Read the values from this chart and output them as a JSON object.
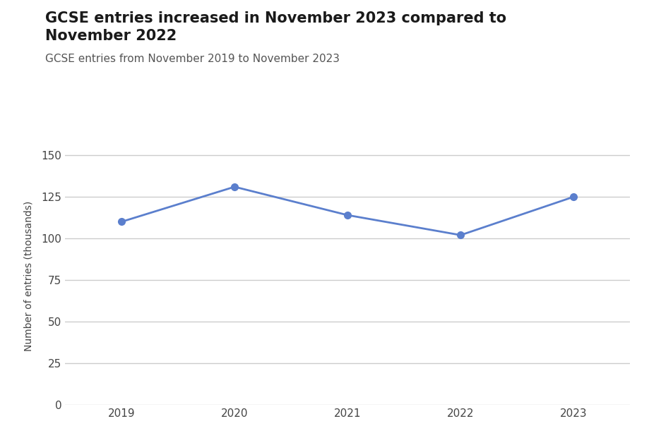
{
  "title_line1": "GCSE entries increased in November 2023 compared to",
  "title_line2": "November 2022",
  "subtitle": "GCSE entries from November 2019 to November 2023",
  "x_values": [
    2019,
    2020,
    2021,
    2022,
    2023
  ],
  "y_values": [
    110,
    131,
    114,
    102,
    125
  ],
  "ylabel": "Number of entries (thousands)",
  "ylim": [
    0,
    155
  ],
  "yticks": [
    0,
    25,
    50,
    75,
    100,
    125,
    150
  ],
  "xlim": [
    2018.5,
    2023.5
  ],
  "line_color": "#5b7fcd",
  "marker_color": "#5b7fcd",
  "background_color": "#ffffff",
  "grid_color": "#cccccc",
  "title_fontsize": 15,
  "subtitle_fontsize": 11,
  "axis_label_fontsize": 10,
  "tick_fontsize": 11
}
